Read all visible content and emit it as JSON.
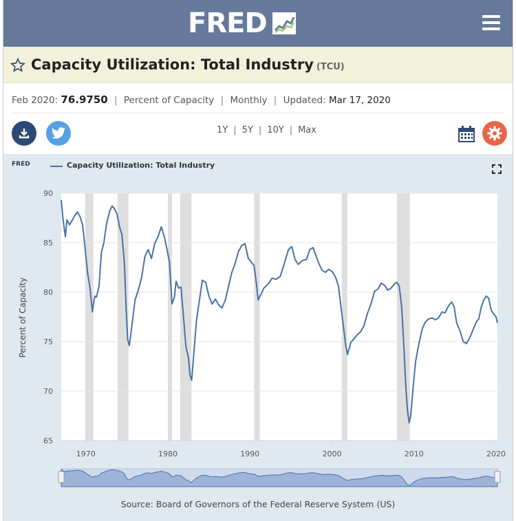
{
  "header": {
    "logo_text": "FRED",
    "logo_icon": "fred-chart-icon",
    "menu_icon": "hamburger-menu-icon"
  },
  "title_bar": {
    "star_icon": "star-icon",
    "title": "Capacity Utilization: Total Industry",
    "series_id": "(TCU)"
  },
  "meta": {
    "date_label": "Feb 2020:",
    "value": "76.9750",
    "units": "Percent of Capacity",
    "frequency": "Monthly",
    "updated_label": "Updated:",
    "updated_value": "Mar 17, 2020",
    "separator": "|"
  },
  "toolbar": {
    "download_icon": "download-icon",
    "twitter_icon": "twitter-icon",
    "ranges": [
      "1Y",
      "5Y",
      "10Y",
      "Max"
    ],
    "calendar_icon": "calendar-icon",
    "settings_icon": "gear-icon"
  },
  "chart_panel": {
    "mini_brand": "FRED",
    "legend_label": "Capacity Utilization: Total Industry",
    "fullscreen_icon": "fullscreen-icon",
    "source": "Source: Board of Governors of the Federal Reserve System (US)"
  },
  "colors": {
    "header": "#66799b",
    "title_bar": "#f1f1dc",
    "series": "#4572a7",
    "recession": "#dedede",
    "panel": "#e1e9f0"
  },
  "chart_data": {
    "type": "line",
    "title": "Capacity Utilization: Total Industry",
    "xlabel": "",
    "ylabel": "Percent of Capacity",
    "xlim": [
      1967.0,
      2020.17
    ],
    "ylim": [
      65,
      90
    ],
    "yticks": [
      65,
      70,
      75,
      80,
      85,
      90
    ],
    "xticks": [
      1970,
      1980,
      1990,
      2000,
      2010,
      2020
    ],
    "recessions": [
      [
        1969.92,
        1970.92
      ],
      [
        1973.87,
        1975.2
      ],
      [
        1980.0,
        1980.5
      ],
      [
        1981.5,
        1982.87
      ],
      [
        1990.5,
        1991.2
      ],
      [
        2001.2,
        2001.87
      ],
      [
        2007.92,
        2009.5
      ]
    ],
    "series": [
      {
        "name": "Capacity Utilization: Total Industry",
        "x": [
          1967.0,
          1967.2,
          1967.5,
          1967.7,
          1968.0,
          1968.3,
          1968.7,
          1969.0,
          1969.3,
          1969.6,
          1969.9,
          1970.2,
          1970.5,
          1970.8,
          1971.0,
          1971.1,
          1971.3,
          1971.6,
          1971.9,
          1972.2,
          1972.5,
          1972.9,
          1973.2,
          1973.5,
          1973.8,
          1974.1,
          1974.4,
          1974.7,
          1974.9,
          1975.1,
          1975.3,
          1975.6,
          1976.0,
          1976.4,
          1976.8,
          1977.2,
          1977.6,
          1978.0,
          1978.4,
          1978.8,
          1979.2,
          1979.6,
          1979.9,
          1980.2,
          1980.5,
          1980.8,
          1981.0,
          1981.3,
          1981.6,
          1981.9,
          1982.2,
          1982.5,
          1982.7,
          1982.9,
          1983.2,
          1983.5,
          1983.9,
          1984.2,
          1984.6,
          1985.0,
          1985.4,
          1985.8,
          1986.2,
          1986.6,
          1987.0,
          1987.4,
          1987.8,
          1988.2,
          1988.6,
          1989.0,
          1989.4,
          1989.8,
          1990.1,
          1990.5,
          1990.8,
          1991.0,
          1991.3,
          1991.7,
          1992.2,
          1992.7,
          1993.2,
          1993.7,
          1994.2,
          1994.7,
          1995.1,
          1995.5,
          1995.9,
          1996.4,
          1996.9,
          1997.3,
          1997.7,
          1998.0,
          1998.4,
          1998.8,
          1999.2,
          1999.6,
          2000.0,
          2000.4,
          2000.8,
          2001.1,
          2001.4,
          2001.7,
          2001.9,
          2002.3,
          2002.7,
          2003.1,
          2003.5,
          2003.9,
          2004.3,
          2004.8,
          2005.2,
          2005.6,
          2006.0,
          2006.4,
          2006.8,
          2007.2,
          2007.6,
          2007.9,
          2008.2,
          2008.5,
          2008.8,
          2009.0,
          2009.2,
          2009.4,
          2009.6,
          2009.9,
          2010.2,
          2010.6,
          2011.0,
          2011.4,
          2011.8,
          2012.2,
          2012.6,
          2013.0,
          2013.4,
          2013.8,
          2014.2,
          2014.6,
          2014.9,
          2015.2,
          2015.6,
          2016.0,
          2016.4,
          2016.8,
          2017.2,
          2017.6,
          2017.9,
          2018.2,
          2018.5,
          2018.8,
          2019.1,
          2019.4,
          2019.7,
          2020.0,
          2020.17
        ],
        "values": [
          89.3,
          87.5,
          85.6,
          87.3,
          86.8,
          87.2,
          87.8,
          88.1,
          87.6,
          86.8,
          84.5,
          82.0,
          80.5,
          78.0,
          79.2,
          79.6,
          79.5,
          80.6,
          84.0,
          85.0,
          86.8,
          88.2,
          88.7,
          88.4,
          87.9,
          86.6,
          85.8,
          83.0,
          78.5,
          75.2,
          74.6,
          76.5,
          79.2,
          80.2,
          81.5,
          83.6,
          84.3,
          83.4,
          84.9,
          85.6,
          86.6,
          85.5,
          84.3,
          83.0,
          78.8,
          79.5,
          81.1,
          80.4,
          80.5,
          77.5,
          74.5,
          73.4,
          71.6,
          71.1,
          74.2,
          77.2,
          79.5,
          81.2,
          81.0,
          79.6,
          78.8,
          79.3,
          78.7,
          78.4,
          79.2,
          80.6,
          82.0,
          82.9,
          84.1,
          84.7,
          84.9,
          83.4,
          83.1,
          82.7,
          80.8,
          79.2,
          79.7,
          80.4,
          80.8,
          81.4,
          81.3,
          81.6,
          82.9,
          84.3,
          84.6,
          83.3,
          82.8,
          83.2,
          83.3,
          84.3,
          84.5,
          83.8,
          82.9,
          82.2,
          82.0,
          82.3,
          82.1,
          81.6,
          80.6,
          78.5,
          76.5,
          74.5,
          73.7,
          74.9,
          75.3,
          75.7,
          76.0,
          76.6,
          77.8,
          78.9,
          80.1,
          80.3,
          80.9,
          80.7,
          80.2,
          80.4,
          80.8,
          81.0,
          80.6,
          78.5,
          74.0,
          70.5,
          68.1,
          66.8,
          67.5,
          70.4,
          73.0,
          74.8,
          76.3,
          77.0,
          77.3,
          77.4,
          77.2,
          77.4,
          78.0,
          77.9,
          78.6,
          79.0,
          78.5,
          76.9,
          76.1,
          75.0,
          74.8,
          75.4,
          76.2,
          77.0,
          77.3,
          78.5,
          79.2,
          79.6,
          79.4,
          78.2,
          77.8,
          77.5,
          76.9
        ]
      }
    ]
  }
}
